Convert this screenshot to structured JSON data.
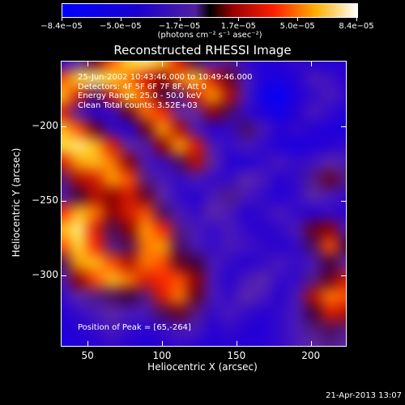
{
  "chart_data": {
    "type": "heatmap",
    "title": "Reconstructed RHESSI Image",
    "xlabel": "Heliocentric X (arcsec)",
    "ylabel": "Heliocentric Y (arcsec)",
    "xlim": [
      32,
      223
    ],
    "ylim": [
      -347,
      -156
    ],
    "x_ticks": [
      50,
      100,
      150,
      200
    ],
    "y_ticks": [
      -200,
      -250,
      -300
    ],
    "colorbar": {
      "units": "(photons cm⁻² s⁻¹ asec⁻²)",
      "tick_labels": [
        "−8.4e−05",
        "−5.0e−05",
        "−1.7e−05",
        "1.7e−05",
        "5.0e−05",
        "8.4e−05"
      ],
      "range": [
        -8.4e-05,
        8.4e-05
      ]
    },
    "annotations": {
      "time_range": "25-Jun-2002 10:43:46.000 to 10:49:46.000",
      "detectors": "Detectors: 4F 5F 6F 7F 8F, Att 0",
      "energy": "Energy Range: 25.0 - 50.0 keV",
      "clean": "Clean    Total counts: 3.52E+03",
      "peak": "Position of Peak = [65,-264]"
    },
    "intensity_grid": [
      [
        0.1,
        0.25,
        0.45,
        0.7,
        0.9,
        0.95,
        0.85,
        0.6,
        0.35,
        0.2,
        0.3,
        0.15,
        0.1,
        0.12,
        0.15,
        0.12,
        0.1,
        0.12
      ],
      [
        0.7,
        0.9,
        0.95,
        0.9,
        0.75,
        0.6,
        0.5,
        0.75,
        0.85,
        0.6,
        0.45,
        0.2,
        0.1,
        0.08,
        0.12,
        0.2,
        0.18,
        0.12
      ],
      [
        0.85,
        0.6,
        0.35,
        0.6,
        0.85,
        0.7,
        0.4,
        0.3,
        0.6,
        0.8,
        0.55,
        0.2,
        0.05,
        0.02,
        0.1,
        0.15,
        0.2,
        0.15
      ],
      [
        0.6,
        0.2,
        0.1,
        0.15,
        0.45,
        0.75,
        0.65,
        0.25,
        0.25,
        0.5,
        0.35,
        0.15,
        0.1,
        0.05,
        0.12,
        0.2,
        0.15,
        0.1
      ],
      [
        0.85,
        0.7,
        0.45,
        0.15,
        0.1,
        0.45,
        0.8,
        0.55,
        0.2,
        0.12,
        0.15,
        0.35,
        0.2,
        0.12,
        0.15,
        0.12,
        0.1,
        0.08
      ],
      [
        0.9,
        0.95,
        0.85,
        0.6,
        0.25,
        0.2,
        0.5,
        0.8,
        0.6,
        0.2,
        0.15,
        0.2,
        0.15,
        0.1,
        0.08,
        0.1,
        0.12,
        0.15
      ],
      [
        0.6,
        0.8,
        0.85,
        0.75,
        0.5,
        0.2,
        0.15,
        0.35,
        0.55,
        0.25,
        0.12,
        0.1,
        0.15,
        0.2,
        0.15,
        0.18,
        0.25,
        0.2
      ],
      [
        0.3,
        0.55,
        0.6,
        0.8,
        0.7,
        0.3,
        0.2,
        0.15,
        0.2,
        0.15,
        0.15,
        0.25,
        0.2,
        0.12,
        0.15,
        0.3,
        0.45,
        0.3
      ],
      [
        0.2,
        0.4,
        0.55,
        0.5,
        0.6,
        0.45,
        0.25,
        0.15,
        0.12,
        0.2,
        0.3,
        0.2,
        0.15,
        0.1,
        0.15,
        0.25,
        0.2,
        0.15
      ],
      [
        0.65,
        0.85,
        0.75,
        0.5,
        0.6,
        0.7,
        0.35,
        0.2,
        0.15,
        0.25,
        0.2,
        0.12,
        0.15,
        0.2,
        0.15,
        0.12,
        0.15,
        0.12
      ],
      [
        0.85,
        0.95,
        0.6,
        0.35,
        0.5,
        0.8,
        0.65,
        0.3,
        0.2,
        0.15,
        0.2,
        0.15,
        0.12,
        0.15,
        0.2,
        0.45,
        0.5,
        0.2
      ],
      [
        0.7,
        0.9,
        0.65,
        0.3,
        0.35,
        0.75,
        0.8,
        0.35,
        0.2,
        0.15,
        0.2,
        0.18,
        0.15,
        0.12,
        0.15,
        0.35,
        0.7,
        0.4
      ],
      [
        0.35,
        0.8,
        0.85,
        0.7,
        0.55,
        0.75,
        0.7,
        0.45,
        0.4,
        0.2,
        0.15,
        0.12,
        0.15,
        0.2,
        0.15,
        0.2,
        0.4,
        0.25
      ],
      [
        0.2,
        0.5,
        0.7,
        0.85,
        0.75,
        0.6,
        0.65,
        0.7,
        0.5,
        0.2,
        0.12,
        0.2,
        0.25,
        0.15,
        0.15,
        0.3,
        0.45,
        0.6
      ],
      [
        0.15,
        0.25,
        0.3,
        0.35,
        0.4,
        0.3,
        0.6,
        0.75,
        0.45,
        0.2,
        0.15,
        0.25,
        0.2,
        0.12,
        0.2,
        0.55,
        0.75,
        0.7
      ],
      [
        0.12,
        0.15,
        0.2,
        0.25,
        0.2,
        0.2,
        0.35,
        0.45,
        0.3,
        0.15,
        0.2,
        0.15,
        0.12,
        0.15,
        0.2,
        0.4,
        0.6,
        0.55
      ],
      [
        0.1,
        0.12,
        0.15,
        0.2,
        0.15,
        0.12,
        0.15,
        0.2,
        0.2,
        0.12,
        0.15,
        0.12,
        0.1,
        0.15,
        0.2,
        0.3,
        0.35,
        0.3
      ],
      [
        0.08,
        0.1,
        0.12,
        0.15,
        0.12,
        0.1,
        0.12,
        0.15,
        0.12,
        0.1,
        0.12,
        0.1,
        0.12,
        0.15,
        0.2,
        0.25,
        0.3,
        0.25
      ]
    ]
  },
  "footer": {
    "date": "21-Apr-2013 13:07"
  }
}
